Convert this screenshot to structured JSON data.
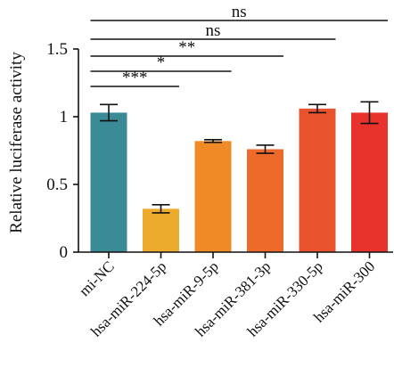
{
  "chart_data": {
    "type": "bar",
    "title": "",
    "xlabel": "",
    "ylabel": "Relative luciferase activity",
    "ylim": [
      0,
      1.5
    ],
    "yticks": [
      0,
      0.5,
      1,
      1.5
    ],
    "ytick_labels": [
      "0",
      "0.5",
      "1",
      "1.5"
    ],
    "categories": [
      "mi-NC",
      "hsa-miR-224-5p",
      "hsa-miR-9-5p",
      "hsa-miR-381-3p",
      "hsa-miR-330-5p",
      "hsa-miR-300"
    ],
    "values": [
      1.03,
      0.32,
      0.82,
      0.76,
      1.06,
      1.03
    ],
    "errors": [
      0.06,
      0.03,
      0.01,
      0.03,
      0.03,
      0.08
    ],
    "colors": [
      "#3a8b96",
      "#ecab2d",
      "#ef8a26",
      "#ed6a2a",
      "#e8532e",
      "#e8332d"
    ],
    "grid": false,
    "significance": [
      {
        "from": 0,
        "to": 1,
        "label": "***"
      },
      {
        "from": 0,
        "to": 2,
        "label": "*"
      },
      {
        "from": 0,
        "to": 3,
        "label": "**"
      },
      {
        "from": 0,
        "to": 4,
        "label": "ns"
      },
      {
        "from": 0,
        "to": 5,
        "label": "ns"
      }
    ]
  }
}
